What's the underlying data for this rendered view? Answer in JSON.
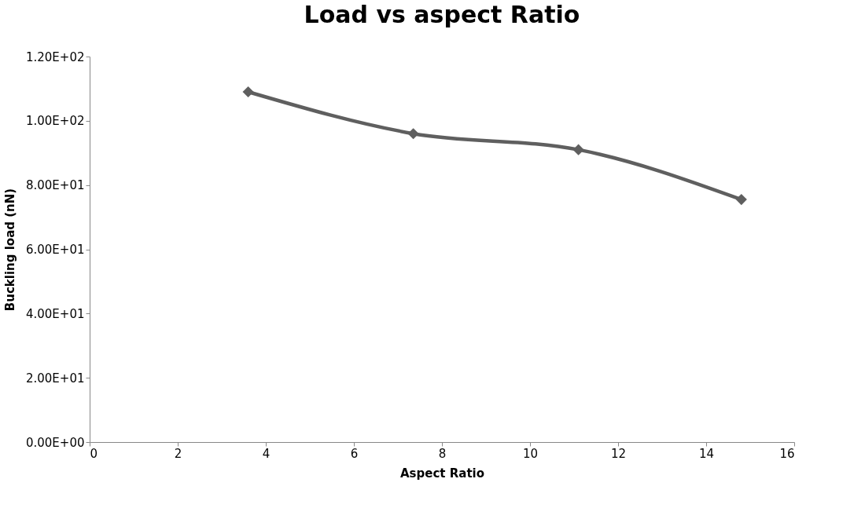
{
  "chart_data": {
    "type": "line",
    "title": "Load  vs aspect Ratio",
    "xlabel": "Aspect Ratio",
    "ylabel": "Buckling load (nN)",
    "x": [
      3.6,
      7.35,
      11.1,
      14.8
    ],
    "series": [
      {
        "color": "#5f5f5f",
        "values": [
          109,
          96,
          91,
          75.5
        ]
      }
    ],
    "xlim": [
      0,
      16
    ],
    "xticks": [
      0,
      2,
      4,
      6,
      8,
      10,
      12,
      14,
      16
    ],
    "ylim": [
      0,
      120
    ],
    "yticks": [
      {
        "value": 0,
        "label": "0.00E+00"
      },
      {
        "value": 20,
        "label": "2.00E+01"
      },
      {
        "value": 40,
        "label": "4.00E+01"
      },
      {
        "value": 60,
        "label": "6.00E+01"
      },
      {
        "value": 80,
        "label": "8.00E+01"
      },
      {
        "value": 100,
        "label": "1.00E+02"
      },
      {
        "value": 120,
        "label": "1.20E+02"
      }
    ],
    "grid": false,
    "marker": "diamond",
    "line_style": "solid"
  }
}
